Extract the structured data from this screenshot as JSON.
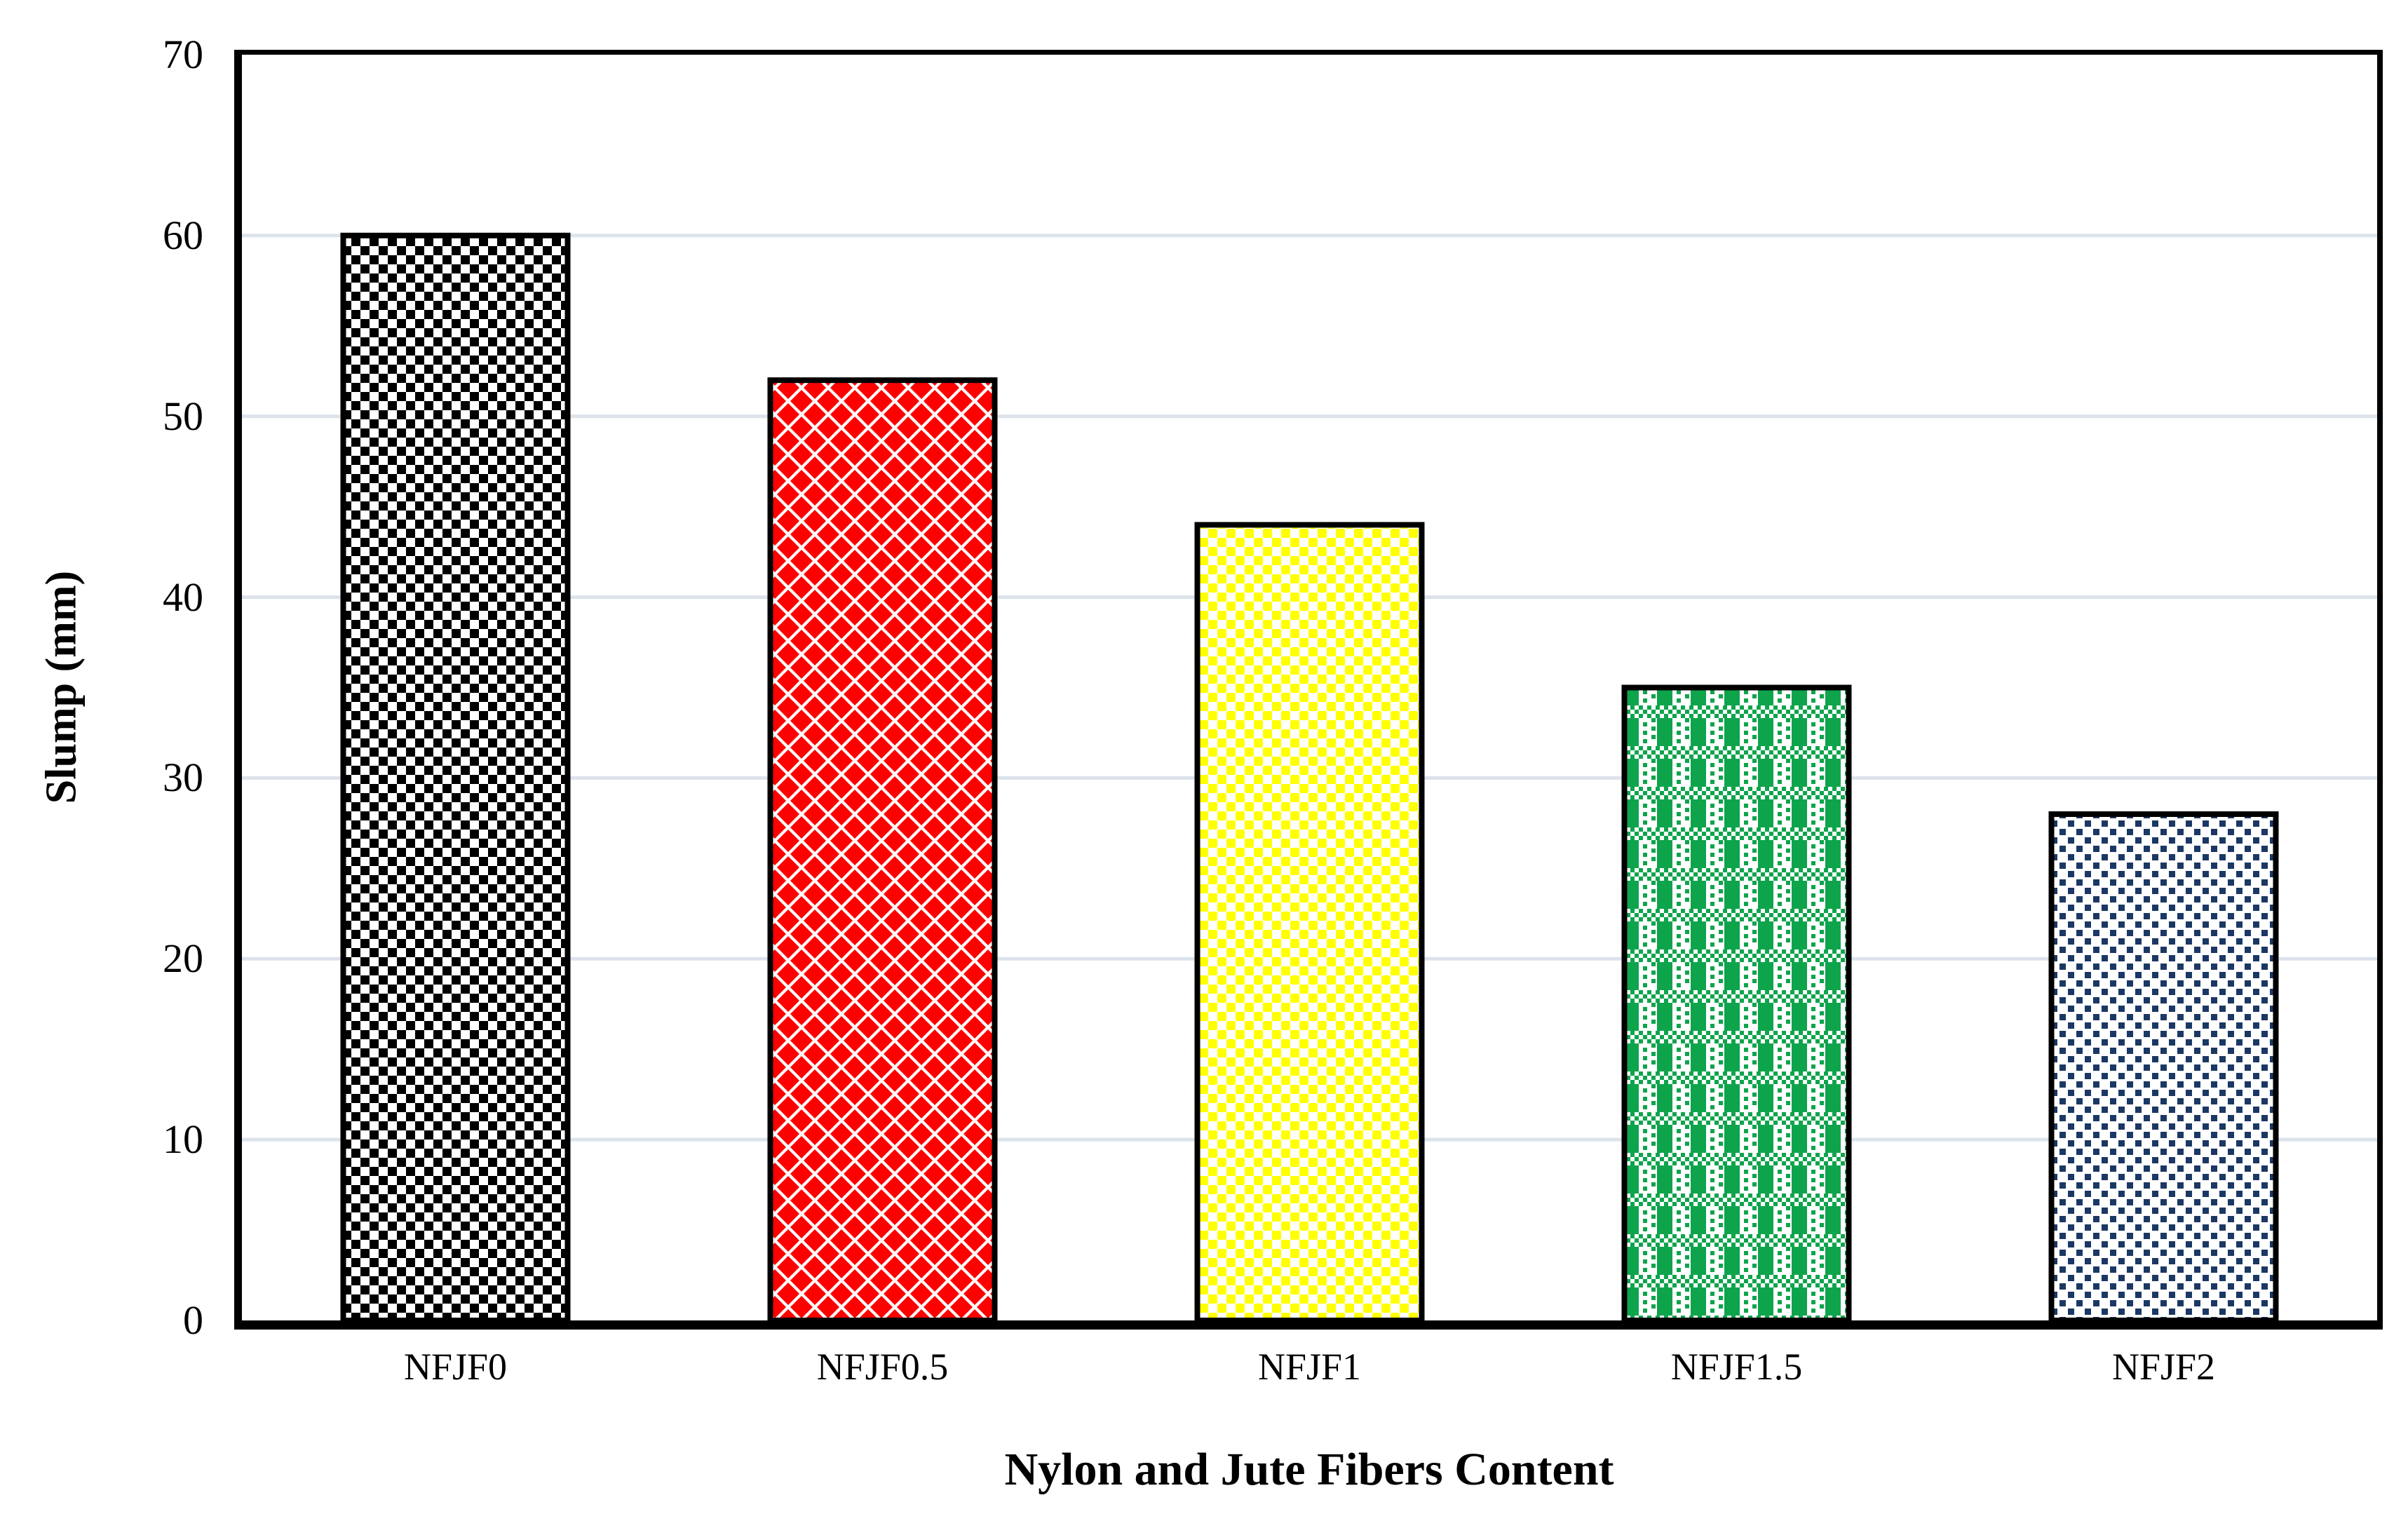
{
  "chart_data": {
    "type": "bar",
    "title": "",
    "xlabel": "Nylon and Jute Fibers Content",
    "ylabel": "Slump (mm)",
    "categories": [
      "NFJF0",
      "NFJF0.5",
      "NFJF1",
      "NFJF1.5",
      "NFJF2"
    ],
    "values": [
      60,
      52,
      44,
      35,
      28
    ],
    "ylim": [
      0,
      70
    ],
    "ytick_step": 10,
    "ytick_labels": [
      "0",
      "10",
      "20",
      "30",
      "40",
      "50",
      "60",
      "70"
    ],
    "grid": "horizontal-only",
    "legend_position": "none",
    "bar_styles": [
      {
        "category": "NFJF0",
        "pattern": "checkerboard",
        "color": "#000000"
      },
      {
        "category": "NFJF0.5",
        "pattern": "diamond-grid",
        "color": "#FE0000"
      },
      {
        "category": "NFJF1",
        "pattern": "checkerboard-small",
        "color": "#FFFF00"
      },
      {
        "category": "NFJF1.5",
        "pattern": "woven-gingham",
        "color": "#0EA44C"
      },
      {
        "category": "NFJF2",
        "pattern": "dotted-stipple",
        "color": "#1B3864"
      }
    ],
    "colors": {
      "background": "#FFFFFF",
      "gridline": "#DCE3EB",
      "axis_border": "#000000",
      "bar_outline": "#000000",
      "pattern_background": "#FFFFFF"
    }
  }
}
